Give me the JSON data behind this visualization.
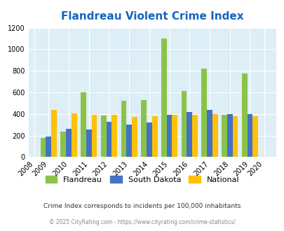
{
  "title": "Flandreau Violent Crime Index",
  "years": [
    2009,
    2010,
    2011,
    2012,
    2013,
    2014,
    2015,
    2016,
    2017,
    2018,
    2019
  ],
  "flandreau": [
    180,
    235,
    600,
    385,
    520,
    530,
    1100,
    610,
    820,
    390,
    775
  ],
  "south_dakota": [
    190,
    265,
    255,
    325,
    300,
    320,
    390,
    415,
    435,
    400,
    400
  ],
  "national": [
    435,
    405,
    395,
    395,
    375,
    380,
    390,
    395,
    400,
    380,
    380
  ],
  "flandreau_color": "#8bc34a",
  "south_dakota_color": "#4472c4",
  "national_color": "#ffc107",
  "bg_color": "#ddeef6",
  "title_color": "#1565c0",
  "xlim": [
    2008,
    2020
  ],
  "ylim": [
    0,
    1200
  ],
  "yticks": [
    0,
    200,
    400,
    600,
    800,
    1000,
    1200
  ],
  "footnote1": "Crime Index corresponds to incidents per 100,000 inhabitants",
  "footnote2": "© 2025 CityRating.com - https://www.cityrating.com/crime-statistics/",
  "legend_labels": [
    "Flandreau",
    "South Dakota",
    "National"
  ]
}
